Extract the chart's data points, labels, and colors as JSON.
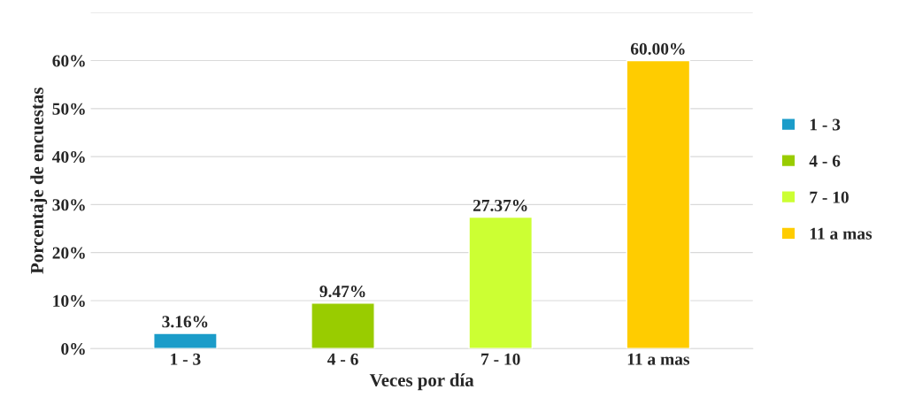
{
  "chart_data": {
    "type": "bar",
    "xlabel": "Veces por día",
    "ylabel": "Porcentaje de encuestas",
    "categories": [
      "1 - 3",
      "4 - 6",
      "7 - 10",
      "11 a mas"
    ],
    "series": [
      {
        "name": "1 - 3",
        "color": "#1b9cc9",
        "values": [
          3.16,
          null,
          null,
          null
        ],
        "value_labels": [
          "3.16%",
          null,
          null,
          null
        ]
      },
      {
        "name": "4 - 6",
        "color": "#99cc00",
        "values": [
          null,
          9.47,
          null,
          null
        ],
        "value_labels": [
          null,
          "9.47%",
          null,
          null
        ]
      },
      {
        "name": "7 - 10",
        "color": "#ccff33",
        "values": [
          null,
          null,
          27.37,
          null
        ],
        "value_labels": [
          null,
          null,
          "27.37%",
          null
        ]
      },
      {
        "name": "11 a mas",
        "color": "#ffcc00",
        "values": [
          null,
          null,
          null,
          60.0
        ],
        "value_labels": [
          null,
          null,
          null,
          "60.00%"
        ]
      }
    ],
    "ylim": [
      0,
      70
    ],
    "yticks": [
      {
        "value": 0,
        "label": "0%"
      },
      {
        "value": 10,
        "label": "10%"
      },
      {
        "value": 20,
        "label": "20%"
      },
      {
        "value": 30,
        "label": "30%"
      },
      {
        "value": 40,
        "label": "40%"
      },
      {
        "value": 50,
        "label": "50%"
      },
      {
        "value": 60,
        "label": "60%"
      },
      {
        "value": 70,
        "label": null
      }
    ],
    "grid": "y",
    "legend": "right"
  }
}
